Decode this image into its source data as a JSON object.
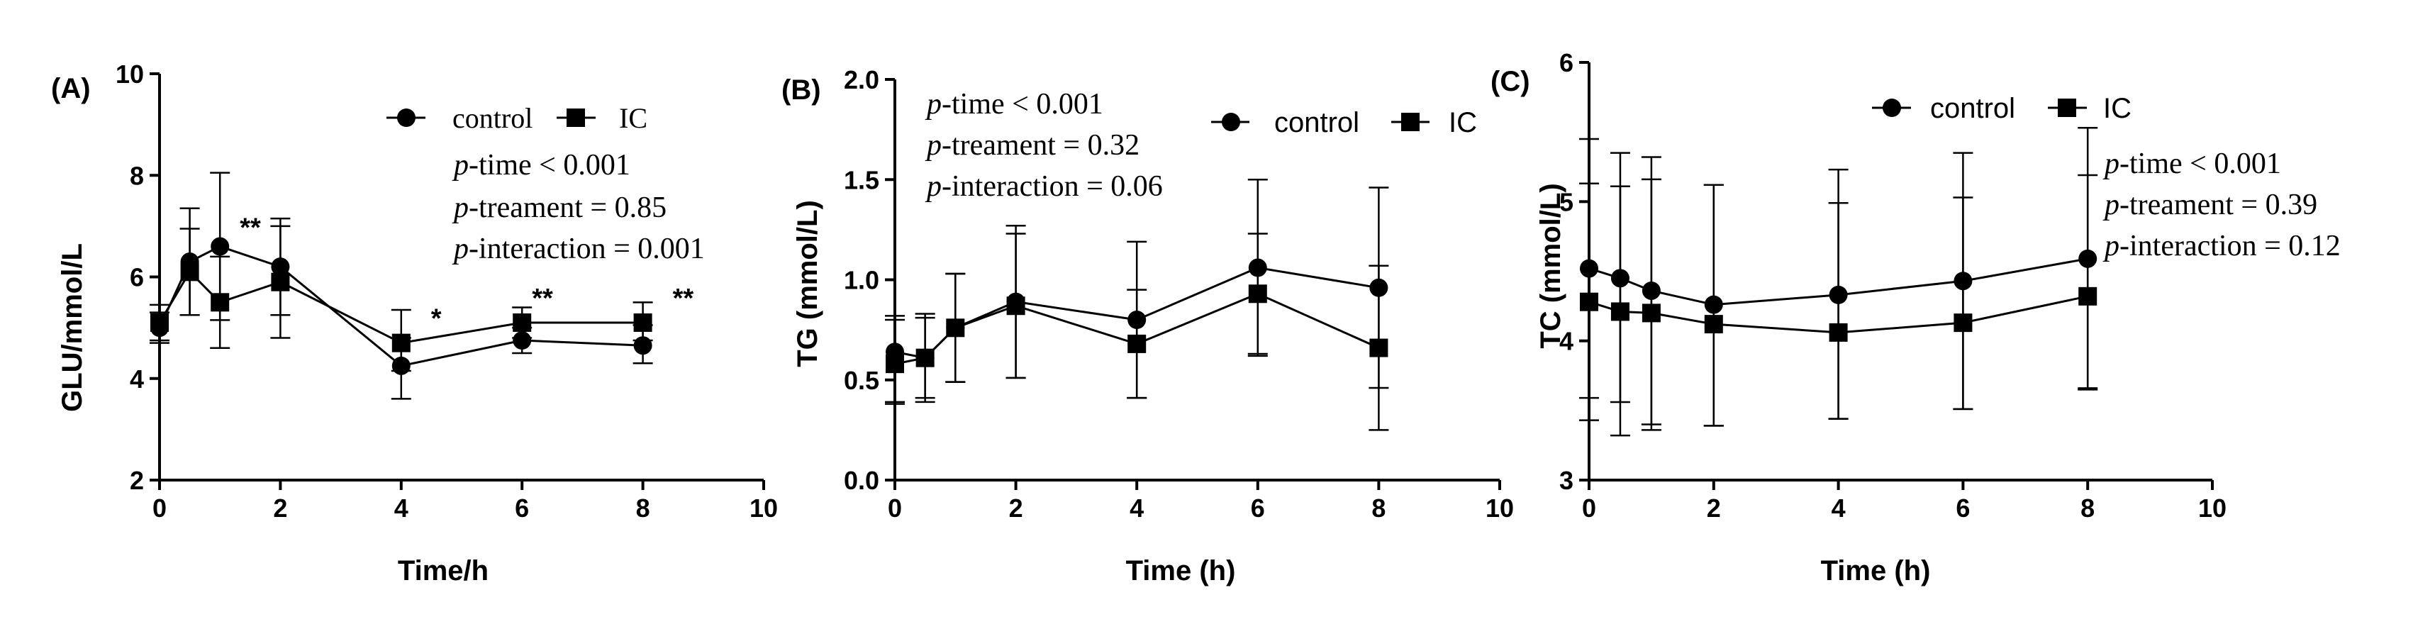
{
  "chart_data": [
    {
      "type": "line",
      "panel_label": "(A)",
      "xlabel": "Time/h",
      "ylabel": "GLU/mmol/L",
      "xlim": [
        0,
        10
      ],
      "ylim": [
        2,
        10
      ],
      "xticks": [
        "0",
        "2",
        "4",
        "6",
        "8",
        "10"
      ],
      "yticks": [
        "2",
        "4",
        "6",
        "8",
        "10"
      ],
      "x": [
        0,
        0.5,
        1,
        2,
        4,
        6,
        8
      ],
      "series": [
        {
          "name": "control",
          "marker": "circle",
          "values": [
            5.0,
            6.3,
            6.6,
            6.2,
            4.25,
            4.75,
            4.65
          ],
          "err_hi": [
            0.3,
            1.05,
            1.45,
            0.95,
            0.55,
            0.25,
            0.4
          ],
          "err_lo": [
            0.3,
            1.05,
            1.45,
            0.95,
            0.65,
            0.25,
            0.35
          ]
        },
        {
          "name": "IC",
          "marker": "square",
          "values": [
            5.1,
            6.1,
            5.5,
            5.9,
            4.7,
            5.1,
            5.1
          ],
          "err_hi": [
            0.35,
            0.85,
            0.9,
            1.1,
            0.65,
            0.3,
            0.4
          ],
          "err_lo": [
            0.35,
            0.85,
            0.9,
            1.1,
            0.55,
            0.3,
            0.35
          ]
        }
      ],
      "significance": [
        {
          "x": 1,
          "label": "**"
        },
        {
          "x": 4,
          "label": "*"
        },
        {
          "x": 6,
          "label": "**"
        },
        {
          "x": 8,
          "label": "**"
        }
      ],
      "stats": {
        "p_time": "-time < 0.001",
        "p_treament": "-treament = 0.85",
        "p_interaction": "-interaction = 0.001"
      },
      "legend_position": "top-right"
    },
    {
      "type": "line",
      "panel_label": "(B)",
      "xlabel": "Time (h)",
      "ylabel": "TG (mmol/L)",
      "xlim": [
        0,
        10
      ],
      "ylim": [
        0,
        2
      ],
      "xticks": [
        "0",
        "2",
        "4",
        "6",
        "8",
        "10"
      ],
      "yticks": [
        "0.0",
        "0.5",
        "1.0",
        "1.5",
        "2.0"
      ],
      "x": [
        0,
        0.5,
        1,
        2,
        4,
        6,
        8
      ],
      "series": [
        {
          "name": "control",
          "marker": "circle",
          "values": [
            0.64,
            0.61,
            0.76,
            0.89,
            0.8,
            1.06,
            0.96
          ],
          "err_hi": [
            0.18,
            0.22,
            0.27,
            0.38,
            0.39,
            0.44,
            0.5
          ],
          "err_lo": [
            0.25,
            0.2,
            0.27,
            0.38,
            0.39,
            0.44,
            0.5
          ]
        },
        {
          "name": "IC",
          "marker": "square",
          "values": [
            0.58,
            0.61,
            0.76,
            0.87,
            0.68,
            0.93,
            0.66
          ],
          "err_hi": [
            0.22,
            0.2,
            0.27,
            0.36,
            0.27,
            0.3,
            0.41
          ],
          "err_lo": [
            0.2,
            0.22,
            0.27,
            0.36,
            0.27,
            0.3,
            0.41
          ]
        }
      ],
      "stats": {
        "p_time": "-time < 0.001",
        "p_treament": "-treament = 0.32",
        "p_interaction": "-interaction = 0.06"
      },
      "legend_position": "top-right"
    },
    {
      "type": "line",
      "panel_label": "(C)",
      "xlabel": "Time (h)",
      "ylabel": "TC (mmol/L)",
      "xlim": [
        0,
        10
      ],
      "ylim": [
        3,
        6
      ],
      "xticks": [
        "0",
        "2",
        "4",
        "6",
        "8",
        "10"
      ],
      "yticks": [
        "3",
        "4",
        "5",
        "6"
      ],
      "x": [
        0,
        0.5,
        1,
        2,
        4,
        6,
        8
      ],
      "series": [
        {
          "name": "control",
          "marker": "circle",
          "values": [
            4.52,
            4.45,
            4.36,
            4.26,
            4.33,
            4.43,
            4.59
          ],
          "err_hi": [
            0.93,
            0.9,
            0.96,
            0.86,
            0.9,
            0.92,
            0.94
          ],
          "err_lo": [
            0.93,
            1.13,
            1.0,
            0.87,
            0.89,
            0.92,
            0.94
          ]
        },
        {
          "name": "IC",
          "marker": "square",
          "values": [
            4.28,
            4.21,
            4.2,
            4.12,
            4.06,
            4.13,
            4.32
          ],
          "err_hi": [
            0.85,
            0.9,
            0.96,
            1.0,
            0.93,
            0.9,
            0.87
          ],
          "err_lo": [
            0.85,
            0.65,
            0.8,
            0.73,
            0.62,
            0.62,
            0.66
          ]
        }
      ],
      "stats": {
        "p_time": "-time < 0.001",
        "p_treament": "-treament = 0.39",
        "p_interaction": "-interaction = 0.12"
      },
      "legend_position": "top"
    }
  ],
  "stat_prefix": "p"
}
